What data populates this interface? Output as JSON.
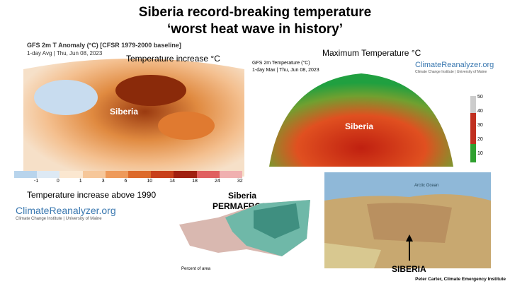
{
  "header": {
    "title_line1": "Siberia record-breaking temperature",
    "title_line2": "‘worst heat wave in history’"
  },
  "anomaly_map": {
    "title": "GFS 2m T Anomaly (°C) [CFSR 1979-2000 baseline]",
    "subtitle": "1-day Avg | Thu, Jun 08, 2023",
    "caption": "Temperature increase °C",
    "region_label": "Siberia",
    "colorbar_labels": [
      "-1",
      "0",
      "1",
      "3",
      "6",
      "10",
      "14",
      "18",
      "24",
      "32"
    ],
    "bottom_caption": "Temperature increase above 1990",
    "logo": "ClimateReanalyzer.org",
    "logo_sub": "Climate Change Institute | University of Maine"
  },
  "max_map": {
    "caption": "Maximum Temperature °C",
    "title": "GFS 2m Temperature (°C)",
    "subtitle": "1-day Max | Thu, Jun 08, 2023",
    "logo": "ClimateReanalyzer.org",
    "logo_sub": "Climate Change Institute | University of Maine",
    "region_label": "Siberia",
    "colorbar_labels": [
      "50",
      "40",
      "30",
      "20",
      "10"
    ]
  },
  "permafrost_map": {
    "title_line1": "Siberia",
    "title_line2": "PERMAFROST",
    "legend_label": "Percent of area"
  },
  "geo_map": {
    "sea_label": "Arctic Ocean",
    "region_label": "SIBERIA"
  },
  "credit": "Peter Carter, Climate Emergency Institute"
}
